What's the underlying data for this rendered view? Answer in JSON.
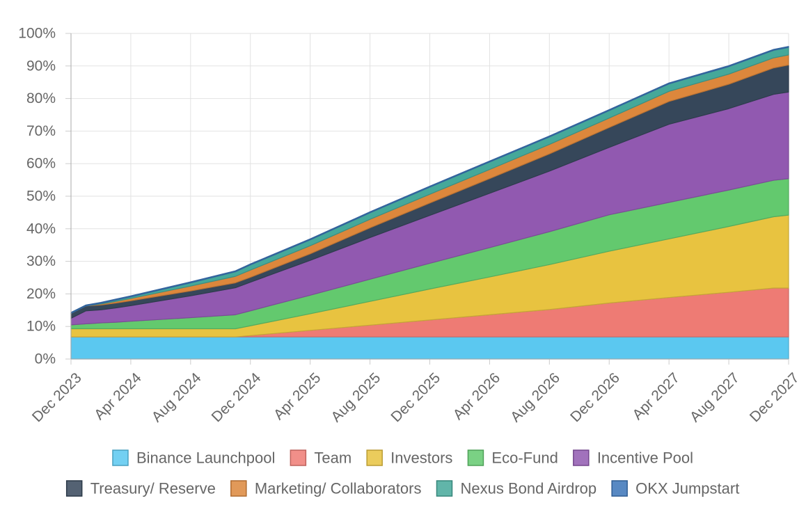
{
  "chart_data": {
    "type": "area",
    "stacked": true,
    "ylim": [
      0,
      100
    ],
    "y_ticks": [
      "0%",
      "10%",
      "20%",
      "30%",
      "40%",
      "50%",
      "60%",
      "70%",
      "80%",
      "90%",
      "100%"
    ],
    "x_ticks": [
      "Dec 2023",
      "Apr 2024",
      "Aug 2024",
      "Dec 2024",
      "Apr 2025",
      "Aug 2025",
      "Dec 2025",
      "Apr 2026",
      "Aug 2026",
      "Dec 2026",
      "Apr 2027",
      "Aug 2027",
      "Dec 2027"
    ],
    "x": [
      "Dec 2023",
      "Jan 2024",
      "Feb 2024",
      "Mar 2024",
      "Apr 2024",
      "Aug 2024",
      "Nov 2024",
      "Dec 2024",
      "Apr 2025",
      "Aug 2025",
      "Dec 2025",
      "Apr 2026",
      "Aug 2026",
      "Dec 2026",
      "Apr 2027",
      "Aug 2027",
      "Nov 2027",
      "Dec 2027"
    ],
    "legend_position": "bottom",
    "grid": true,
    "series": [
      {
        "name": "Binance Launchpool",
        "color": "#5bc8f0",
        "values": [
          6.8,
          6.8,
          6.8,
          6.8,
          6.8,
          6.8,
          6.8,
          6.8,
          6.8,
          6.8,
          6.8,
          6.8,
          6.8,
          6.8,
          6.8,
          6.8,
          6.8,
          6.8
        ]
      },
      {
        "name": "Team",
        "color": "#ee7b74",
        "values": [
          0,
          0,
          0,
          0,
          0,
          0,
          0,
          0.4,
          2.0,
          3.6,
          5.2,
          6.8,
          8.4,
          10.4,
          12.1,
          13.7,
          15.0,
          15.0
        ]
      },
      {
        "name": "Investors",
        "color": "#e8c340",
        "values": [
          2.5,
          2.5,
          2.5,
          2.5,
          2.5,
          2.5,
          2.5,
          3.0,
          5.1,
          7.3,
          9.5,
          11.6,
          13.8,
          15.9,
          18.0,
          20.2,
          21.9,
          22.4
        ]
      },
      {
        "name": "Eco-Fund",
        "color": "#63c96e",
        "values": [
          1.2,
          1.5,
          1.8,
          2.0,
          2.3,
          3.4,
          4.3,
          4.6,
          5.7,
          6.8,
          7.9,
          9.0,
          10.1,
          11.2,
          11.2,
          11.2,
          11.2,
          11.2
        ]
      },
      {
        "name": "Incentive Pool",
        "color": "#9159b0",
        "values": [
          2.0,
          4.0,
          4.0,
          4.4,
          4.8,
          6.7,
          8.3,
          8.8,
          10.7,
          12.8,
          14.7,
          16.7,
          18.6,
          20.7,
          24.0,
          25.0,
          26.4,
          26.6
        ]
      },
      {
        "name": "Treasury/ Reserve",
        "color": "#36475a",
        "values": [
          1.5,
          1.5,
          1.5,
          1.5,
          1.5,
          1.5,
          1.5,
          1.5,
          2.0,
          3.0,
          3.8,
          4.5,
          5.3,
          6.1,
          7.0,
          7.5,
          8.1,
          8.3
        ]
      },
      {
        "name": "Marketing/ Collaborators",
        "color": "#dc873c",
        "values": [
          0,
          0,
          0.3,
          0.5,
          0.7,
          1.5,
          2.0,
          2.2,
          2.5,
          2.6,
          2.7,
          2.8,
          2.9,
          2.9,
          3.1,
          3.1,
          3.1,
          3.1
        ]
      },
      {
        "name": "Nexus Bond Airdrop",
        "color": "#45a89a",
        "values": [
          0,
          0,
          0.2,
          0.4,
          0.5,
          1.0,
          1.4,
          1.6,
          1.8,
          2.0,
          2.2,
          2.3,
          2.3,
          2.3,
          2.3,
          2.3,
          2.3,
          2.3
        ]
      },
      {
        "name": "OKX Jumpstart",
        "color": "#3b74b8",
        "values": [
          0.3,
          0.3,
          0.3,
          0.3,
          0.3,
          0.3,
          0.3,
          0.3,
          0.3,
          0.3,
          0.3,
          0.3,
          0.3,
          0.3,
          0.3,
          0.3,
          0.3,
          0.3
        ]
      }
    ]
  }
}
